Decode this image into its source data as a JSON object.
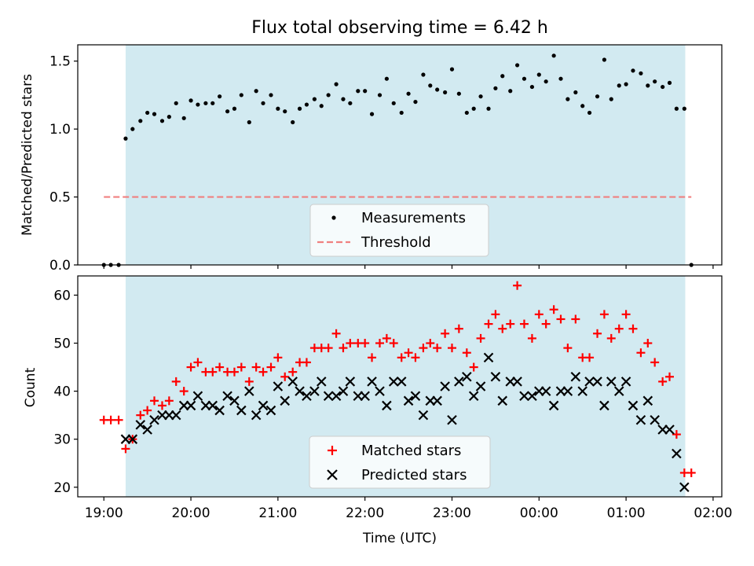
{
  "title": "Flux total observing time = 6.42 h",
  "colors": {
    "shade": "#add8e6",
    "measurements": "#000000",
    "threshold": "#f08080",
    "matched": "#ff0000",
    "predicted": "#000000"
  },
  "chart_data": [
    {
      "type": "scatter",
      "ylabel": "Matched/Predicted stars",
      "ylim": [
        0,
        1.62
      ],
      "yticks": [
        0.0,
        0.5,
        1.0,
        1.5
      ],
      "ytick_labels": [
        "0.0",
        "0.5",
        "1.0",
        "1.5"
      ],
      "xlim": [
        18.7,
        26.1
      ],
      "shaded_span": [
        19.25,
        25.68
      ],
      "threshold": {
        "name": "Threshold",
        "value": 0.5,
        "x_range": [
          19.0,
          25.75
        ]
      },
      "legend": {
        "position": "lower center",
        "entries": [
          "Measurements",
          "Threshold"
        ]
      },
      "series": [
        {
          "name": "Measurements",
          "x": [
            19.0,
            19.08,
            19.17,
            19.25,
            19.33,
            19.42,
            19.5,
            19.58,
            19.67,
            19.75,
            19.83,
            19.92,
            20.0,
            20.08,
            20.17,
            20.25,
            20.33,
            20.42,
            20.5,
            20.58,
            20.67,
            20.75,
            20.83,
            20.92,
            21.0,
            21.08,
            21.17,
            21.25,
            21.33,
            21.42,
            21.5,
            21.58,
            21.67,
            21.75,
            21.83,
            21.92,
            22.0,
            22.08,
            22.17,
            22.25,
            22.33,
            22.42,
            22.5,
            22.58,
            22.67,
            22.75,
            22.83,
            22.92,
            23.0,
            23.08,
            23.17,
            23.25,
            23.33,
            23.42,
            23.5,
            23.58,
            23.67,
            23.75,
            23.83,
            23.92,
            24.0,
            24.08,
            24.17,
            24.25,
            24.33,
            24.42,
            24.5,
            24.58,
            24.67,
            24.75,
            24.83,
            24.92,
            25.0,
            25.08,
            25.17,
            25.25,
            25.33,
            25.42,
            25.5,
            25.58,
            25.67,
            25.75
          ],
          "y": [
            0.0,
            0.0,
            0.0,
            0.93,
            1.0,
            1.06,
            1.12,
            1.11,
            1.06,
            1.09,
            1.19,
            1.08,
            1.21,
            1.18,
            1.19,
            1.19,
            1.24,
            1.13,
            1.15,
            1.25,
            1.05,
            1.28,
            1.19,
            1.25,
            1.15,
            1.13,
            1.05,
            1.15,
            1.18,
            1.22,
            1.17,
            1.25,
            1.33,
            1.22,
            1.19,
            1.28,
            1.28,
            1.11,
            1.25,
            1.37,
            1.19,
            1.12,
            1.26,
            1.2,
            1.4,
            1.32,
            1.29,
            1.27,
            1.44,
            1.26,
            1.12,
            1.15,
            1.24,
            1.15,
            1.3,
            1.39,
            1.28,
            1.47,
            1.37,
            1.31,
            1.4,
            1.35,
            1.54,
            1.37,
            1.22,
            1.27,
            1.17,
            1.12,
            1.24,
            1.51,
            1.22,
            1.32,
            1.33,
            1.43,
            1.41,
            1.32,
            1.35,
            1.31,
            1.34,
            1.15,
            1.15,
            0.0
          ]
        }
      ]
    },
    {
      "type": "scatter",
      "xlabel": "Time (UTC)",
      "ylabel": "Count",
      "ylim": [
        18,
        64
      ],
      "yticks": [
        20,
        30,
        40,
        50,
        60
      ],
      "ytick_labels": [
        "20",
        "30",
        "40",
        "50",
        "60"
      ],
      "xlim": [
        18.7,
        26.1
      ],
      "xticks": [
        19,
        20,
        21,
        22,
        23,
        24,
        25,
        26
      ],
      "xtick_labels": [
        "19:00",
        "20:00",
        "21:00",
        "22:00",
        "23:00",
        "00:00",
        "01:00",
        "02:00"
      ],
      "shaded_span": [
        19.25,
        25.68
      ],
      "legend": {
        "position": "lower center",
        "entries": [
          "Matched stars",
          "Predicted stars"
        ]
      },
      "series": [
        {
          "name": "Matched stars",
          "marker": "plus",
          "x": [
            19.0,
            19.08,
            19.17,
            19.25,
            19.33,
            19.42,
            19.5,
            19.58,
            19.67,
            19.75,
            19.83,
            19.92,
            20.0,
            20.08,
            20.17,
            20.25,
            20.33,
            20.42,
            20.5,
            20.58,
            20.67,
            20.75,
            20.83,
            20.92,
            21.0,
            21.08,
            21.17,
            21.25,
            21.33,
            21.42,
            21.5,
            21.58,
            21.67,
            21.75,
            21.83,
            21.92,
            22.0,
            22.08,
            22.17,
            22.25,
            22.33,
            22.42,
            22.5,
            22.58,
            22.67,
            22.75,
            22.83,
            22.92,
            23.0,
            23.08,
            23.17,
            23.25,
            23.33,
            23.42,
            23.5,
            23.58,
            23.67,
            23.75,
            23.83,
            23.92,
            24.0,
            24.08,
            24.17,
            24.25,
            24.33,
            24.42,
            24.5,
            24.58,
            24.67,
            24.75,
            24.83,
            24.92,
            25.0,
            25.08,
            25.17,
            25.25,
            25.33,
            25.42,
            25.5,
            25.58,
            25.67,
            25.75
          ],
          "y": [
            34,
            34,
            34,
            28,
            30,
            35,
            36,
            38,
            37,
            38,
            42,
            40,
            45,
            46,
            44,
            44,
            45,
            44,
            44,
            45,
            42,
            45,
            44,
            45,
            47,
            43,
            44,
            46,
            46,
            49,
            49,
            49,
            52,
            49,
            50,
            50,
            50,
            47,
            50,
            51,
            50,
            47,
            48,
            47,
            49,
            50,
            49,
            52,
            49,
            53,
            48,
            45,
            51,
            54,
            56,
            53,
            54,
            62,
            54,
            51,
            56,
            54,
            57,
            55,
            49,
            55,
            47,
            47,
            52,
            56,
            51,
            53,
            56,
            53,
            48,
            50,
            46,
            42,
            43,
            31,
            23,
            23
          ]
        },
        {
          "name": "Predicted stars",
          "marker": "x",
          "x": [
            19.25,
            19.33,
            19.42,
            19.5,
            19.58,
            19.67,
            19.75,
            19.83,
            19.92,
            20.0,
            20.08,
            20.17,
            20.25,
            20.33,
            20.42,
            20.5,
            20.58,
            20.67,
            20.75,
            20.83,
            20.92,
            21.0,
            21.08,
            21.17,
            21.25,
            21.33,
            21.42,
            21.5,
            21.58,
            21.67,
            21.75,
            21.83,
            21.92,
            22.0,
            22.08,
            22.17,
            22.25,
            22.33,
            22.42,
            22.5,
            22.58,
            22.67,
            22.75,
            22.83,
            22.92,
            23.0,
            23.08,
            23.17,
            23.25,
            23.33,
            23.42,
            23.5,
            23.58,
            23.67,
            23.75,
            23.83,
            23.92,
            24.0,
            24.08,
            24.17,
            24.25,
            24.33,
            24.42,
            24.5,
            24.58,
            24.67,
            24.75,
            24.83,
            24.92,
            25.0,
            25.08,
            25.17,
            25.25,
            25.33,
            25.42,
            25.5,
            25.58,
            25.67
          ],
          "y": [
            30,
            30,
            33,
            32,
            34,
            35,
            35,
            35,
            37,
            37,
            39,
            37,
            37,
            36,
            39,
            38,
            36,
            40,
            35,
            37,
            36,
            41,
            38,
            42,
            40,
            39,
            40,
            42,
            39,
            39,
            40,
            42,
            39,
            39,
            42,
            40,
            37,
            42,
            42,
            38,
            39,
            35,
            38,
            38,
            41,
            34,
            42,
            43,
            39,
            41,
            47,
            43,
            38,
            42,
            42,
            39,
            39,
            40,
            40,
            37,
            40,
            40,
            43,
            40,
            42,
            42,
            37,
            42,
            40,
            42,
            37,
            34,
            38,
            34,
            32,
            32,
            27,
            20
          ]
        }
      ]
    }
  ]
}
